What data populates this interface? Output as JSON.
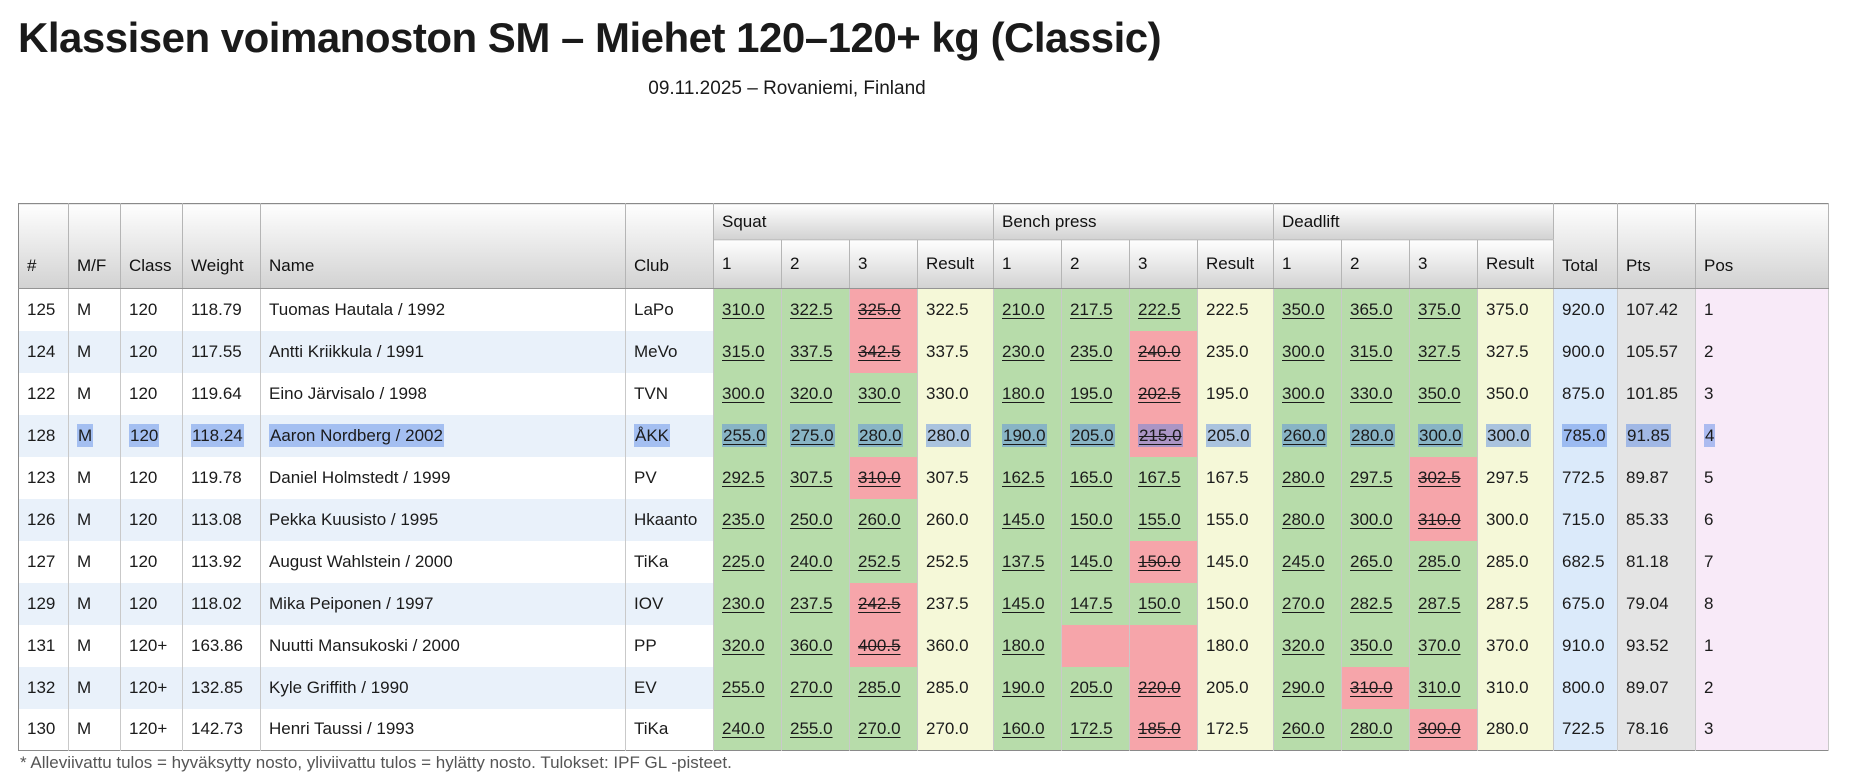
{
  "page": {
    "title": "Klassisen voimanoston SM – Miehet 120–120+ kg (Classic)",
    "subtitle": "09.11.2025 – Rovaniemi, Finland",
    "footnote": "* Alleviivattu tulos = hyväksytty nosto, yliviivattu tulos = hylätty nosto. Tulokset: IPF GL -pisteet."
  },
  "colors": {
    "good_lift_bg": "#b7dcaa",
    "failed_lift_bg": "#f6a5aa",
    "result_bg": "#f5f8d8",
    "total_bg": "#dbeafa",
    "pts_bg": "#e4e4e4",
    "pos_bg": "#f8eaf8",
    "row_alt_bg": "#e9f1fa",
    "selection_bg": "rgba(80,130,230,0.45)"
  },
  "table": {
    "group_headers": {
      "squat": "Squat",
      "bench": "Bench press",
      "deadlift": "Deadlift"
    },
    "columns": {
      "num": "#",
      "mf": "M/F",
      "class": "Class",
      "weight": "Weight",
      "name": "Name",
      "club": "Club",
      "attempt1": "1",
      "attempt2": "2",
      "attempt3": "3",
      "result": "Result",
      "total": "Total",
      "pts": "Pts",
      "pos": "Pos"
    },
    "rows": [
      {
        "num": "125",
        "mf": "M",
        "class": "120",
        "weight": "118.79",
        "name": "Tuomas Hautala / 1992",
        "club": "LaPo",
        "squat": {
          "attempts": [
            {
              "v": "310.0",
              "ok": true
            },
            {
              "v": "322.5",
              "ok": true
            },
            {
              "v": "325.0",
              "ok": false
            }
          ],
          "result": "322.5"
        },
        "bench": {
          "attempts": [
            {
              "v": "210.0",
              "ok": true
            },
            {
              "v": "217.5",
              "ok": true
            },
            {
              "v": "222.5",
              "ok": true
            }
          ],
          "result": "222.5"
        },
        "deadlift": {
          "attempts": [
            {
              "v": "350.0",
              "ok": true
            },
            {
              "v": "365.0",
              "ok": true
            },
            {
              "v": "375.0",
              "ok": true
            }
          ],
          "result": "375.0"
        },
        "total": "920.0",
        "pts": "107.42",
        "pos": "1",
        "selected": false
      },
      {
        "num": "124",
        "mf": "M",
        "class": "120",
        "weight": "117.55",
        "name": "Antti Kriikkula / 1991",
        "club": "MeVo",
        "squat": {
          "attempts": [
            {
              "v": "315.0",
              "ok": true
            },
            {
              "v": "337.5",
              "ok": true
            },
            {
              "v": "342.5",
              "ok": false
            }
          ],
          "result": "337.5"
        },
        "bench": {
          "attempts": [
            {
              "v": "230.0",
              "ok": true
            },
            {
              "v": "235.0",
              "ok": true
            },
            {
              "v": "240.0",
              "ok": false
            }
          ],
          "result": "235.0"
        },
        "deadlift": {
          "attempts": [
            {
              "v": "300.0",
              "ok": true
            },
            {
              "v": "315.0",
              "ok": true
            },
            {
              "v": "327.5",
              "ok": true
            }
          ],
          "result": "327.5"
        },
        "total": "900.0",
        "pts": "105.57",
        "pos": "2",
        "selected": false
      },
      {
        "num": "122",
        "mf": "M",
        "class": "120",
        "weight": "119.64",
        "name": "Eino Järvisalo / 1998",
        "club": "TVN",
        "squat": {
          "attempts": [
            {
              "v": "300.0",
              "ok": true
            },
            {
              "v": "320.0",
              "ok": true
            },
            {
              "v": "330.0",
              "ok": true
            }
          ],
          "result": "330.0"
        },
        "bench": {
          "attempts": [
            {
              "v": "180.0",
              "ok": true
            },
            {
              "v": "195.0",
              "ok": true
            },
            {
              "v": "202.5",
              "ok": false
            }
          ],
          "result": "195.0"
        },
        "deadlift": {
          "attempts": [
            {
              "v": "300.0",
              "ok": true
            },
            {
              "v": "330.0",
              "ok": true
            },
            {
              "v": "350.0",
              "ok": true
            }
          ],
          "result": "350.0"
        },
        "total": "875.0",
        "pts": "101.85",
        "pos": "3",
        "selected": false
      },
      {
        "num": "128",
        "mf": "M",
        "class": "120",
        "weight": "118.24",
        "name": "Aaron Nordberg / 2002",
        "club": "ÅKK",
        "squat": {
          "attempts": [
            {
              "v": "255.0",
              "ok": true
            },
            {
              "v": "275.0",
              "ok": true
            },
            {
              "v": "280.0",
              "ok": true
            }
          ],
          "result": "280.0"
        },
        "bench": {
          "attempts": [
            {
              "v": "190.0",
              "ok": true
            },
            {
              "v": "205.0",
              "ok": true
            },
            {
              "v": "215.0",
              "ok": false
            }
          ],
          "result": "205.0"
        },
        "deadlift": {
          "attempts": [
            {
              "v": "260.0",
              "ok": true
            },
            {
              "v": "280.0",
              "ok": true
            },
            {
              "v": "300.0",
              "ok": true
            }
          ],
          "result": "300.0"
        },
        "total": "785.0",
        "pts": "91.85",
        "pos": "4",
        "selected": true
      },
      {
        "num": "123",
        "mf": "M",
        "class": "120",
        "weight": "119.78",
        "name": "Daniel Holmstedt / 1999",
        "club": "PV",
        "squat": {
          "attempts": [
            {
              "v": "292.5",
              "ok": true
            },
            {
              "v": "307.5",
              "ok": true
            },
            {
              "v": "310.0",
              "ok": false
            }
          ],
          "result": "307.5"
        },
        "bench": {
          "attempts": [
            {
              "v": "162.5",
              "ok": true
            },
            {
              "v": "165.0",
              "ok": true
            },
            {
              "v": "167.5",
              "ok": true
            }
          ],
          "result": "167.5"
        },
        "deadlift": {
          "attempts": [
            {
              "v": "280.0",
              "ok": true
            },
            {
              "v": "297.5",
              "ok": true
            },
            {
              "v": "302.5",
              "ok": false
            }
          ],
          "result": "297.5"
        },
        "total": "772.5",
        "pts": "89.87",
        "pos": "5",
        "selected": false
      },
      {
        "num": "126",
        "mf": "M",
        "class": "120",
        "weight": "113.08",
        "name": "Pekka Kuusisto / 1995",
        "club": "Hkaanto",
        "squat": {
          "attempts": [
            {
              "v": "235.0",
              "ok": true
            },
            {
              "v": "250.0",
              "ok": true
            },
            {
              "v": "260.0",
              "ok": true
            }
          ],
          "result": "260.0"
        },
        "bench": {
          "attempts": [
            {
              "v": "145.0",
              "ok": true
            },
            {
              "v": "150.0",
              "ok": true
            },
            {
              "v": "155.0",
              "ok": true
            }
          ],
          "result": "155.0"
        },
        "deadlift": {
          "attempts": [
            {
              "v": "280.0",
              "ok": true
            },
            {
              "v": "300.0",
              "ok": true
            },
            {
              "v": "310.0",
              "ok": false
            }
          ],
          "result": "300.0"
        },
        "total": "715.0",
        "pts": "85.33",
        "pos": "6",
        "selected": false
      },
      {
        "num": "127",
        "mf": "M",
        "class": "120",
        "weight": "113.92",
        "name": "August Wahlstein / 2000",
        "club": "TiKa",
        "squat": {
          "attempts": [
            {
              "v": "225.0",
              "ok": true
            },
            {
              "v": "240.0",
              "ok": true
            },
            {
              "v": "252.5",
              "ok": true
            }
          ],
          "result": "252.5"
        },
        "bench": {
          "attempts": [
            {
              "v": "137.5",
              "ok": true
            },
            {
              "v": "145.0",
              "ok": true
            },
            {
              "v": "150.0",
              "ok": false
            }
          ],
          "result": "145.0"
        },
        "deadlift": {
          "attempts": [
            {
              "v": "245.0",
              "ok": true
            },
            {
              "v": "265.0",
              "ok": true
            },
            {
              "v": "285.0",
              "ok": true
            }
          ],
          "result": "285.0"
        },
        "total": "682.5",
        "pts": "81.18",
        "pos": "7",
        "selected": false
      },
      {
        "num": "129",
        "mf": "M",
        "class": "120",
        "weight": "118.02",
        "name": "Mika Peiponen / 1997",
        "club": "IOV",
        "squat": {
          "attempts": [
            {
              "v": "230.0",
              "ok": true
            },
            {
              "v": "237.5",
              "ok": true
            },
            {
              "v": "242.5",
              "ok": false
            }
          ],
          "result": "237.5"
        },
        "bench": {
          "attempts": [
            {
              "v": "145.0",
              "ok": true
            },
            {
              "v": "147.5",
              "ok": true
            },
            {
              "v": "150.0",
              "ok": true
            }
          ],
          "result": "150.0"
        },
        "deadlift": {
          "attempts": [
            {
              "v": "270.0",
              "ok": true
            },
            {
              "v": "282.5",
              "ok": true
            },
            {
              "v": "287.5",
              "ok": true
            }
          ],
          "result": "287.5"
        },
        "total": "675.0",
        "pts": "79.04",
        "pos": "8",
        "selected": false
      },
      {
        "num": "131",
        "mf": "M",
        "class": "120+",
        "weight": "163.86",
        "name": "Nuutti Mansukoski / 2000",
        "club": "PP",
        "squat": {
          "attempts": [
            {
              "v": "320.0",
              "ok": true
            },
            {
              "v": "360.0",
              "ok": true
            },
            {
              "v": "400.5",
              "ok": false
            }
          ],
          "result": "360.0"
        },
        "bench": {
          "attempts": [
            {
              "v": "180.0",
              "ok": true
            },
            {
              "v": "",
              "ok": false
            },
            {
              "v": "",
              "ok": false
            }
          ],
          "result": "180.0"
        },
        "deadlift": {
          "attempts": [
            {
              "v": "320.0",
              "ok": true
            },
            {
              "v": "350.0",
              "ok": true
            },
            {
              "v": "370.0",
              "ok": true
            }
          ],
          "result": "370.0"
        },
        "total": "910.0",
        "pts": "93.52",
        "pos": "1",
        "selected": false
      },
      {
        "num": "132",
        "mf": "M",
        "class": "120+",
        "weight": "132.85",
        "name": "Kyle Griffith / 1990",
        "club": "EV",
        "squat": {
          "attempts": [
            {
              "v": "255.0",
              "ok": true
            },
            {
              "v": "270.0",
              "ok": true
            },
            {
              "v": "285.0",
              "ok": true
            }
          ],
          "result": "285.0"
        },
        "bench": {
          "attempts": [
            {
              "v": "190.0",
              "ok": true
            },
            {
              "v": "205.0",
              "ok": true
            },
            {
              "v": "220.0",
              "ok": false
            }
          ],
          "result": "205.0"
        },
        "deadlift": {
          "attempts": [
            {
              "v": "290.0",
              "ok": true
            },
            {
              "v": "310.0",
              "ok": false
            },
            {
              "v": "310.0",
              "ok": true
            }
          ],
          "result": "310.0"
        },
        "total": "800.0",
        "pts": "89.07",
        "pos": "2",
        "selected": false
      },
      {
        "num": "130",
        "mf": "M",
        "class": "120+",
        "weight": "142.73",
        "name": "Henri Taussi / 1993",
        "club": "TiKa",
        "squat": {
          "attempts": [
            {
              "v": "240.0",
              "ok": true
            },
            {
              "v": "255.0",
              "ok": true
            },
            {
              "v": "270.0",
              "ok": true
            }
          ],
          "result": "270.0"
        },
        "bench": {
          "attempts": [
            {
              "v": "160.0",
              "ok": true
            },
            {
              "v": "172.5",
              "ok": true
            },
            {
              "v": "185.0",
              "ok": false
            }
          ],
          "result": "172.5"
        },
        "deadlift": {
          "attempts": [
            {
              "v": "260.0",
              "ok": true
            },
            {
              "v": "280.0",
              "ok": true
            },
            {
              "v": "300.0",
              "ok": false
            }
          ],
          "result": "280.0"
        },
        "total": "722.5",
        "pts": "78.16",
        "pos": "3",
        "selected": false
      }
    ]
  }
}
